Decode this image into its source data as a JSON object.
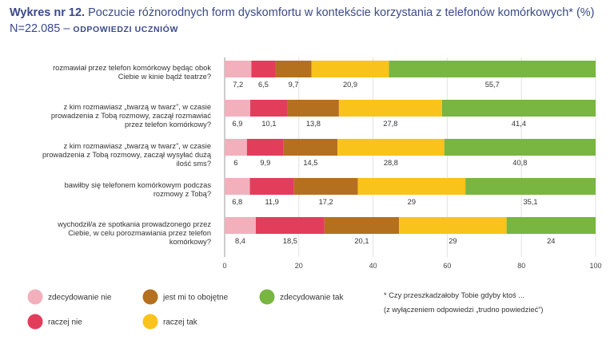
{
  "title": {
    "lead": "Wykres nr 12.",
    "text": "Poczucie różnorodnych form dyskomfortu w kontekście korzystania z telefonów komórkowych* (%) N=22.085 –",
    "tag": "ODPOWIEDZI UCZNIÓW"
  },
  "chart_data": {
    "type": "bar",
    "orientation": "horizontal",
    "stacked": true,
    "categories": [
      [
        "rozmawiał przez telefon komórkowy będąc obok",
        "Ciebie w kinie bądź teatrze?"
      ],
      [
        "z kim rozmawiasz „twarzą w twarz”, w czasie",
        "prowadzenia z Tobą rozmowy, zaczął rozmawiać",
        "przez telefon komórkowy?"
      ],
      [
        "z kim rozmawiasz „twarzą w twarz”, w czasie",
        "prowadzenia z Tobą rozmowy, zaczął wysyłać dużą",
        "ilość sms?"
      ],
      [
        "bawiłby się telefonem komórkowym podczas",
        "rozmowy z Tobą?"
      ],
      [
        "wychodził/a ze spotkania prowadzonego przez",
        "Ciebie, w celu porozmawiania przez telefon",
        "komórkowy?"
      ]
    ],
    "series": [
      {
        "name": "zdecydowanie nie",
        "color": "#f2b0bd",
        "values": [
          7.2,
          6.9,
          6,
          6.8,
          8.4
        ]
      },
      {
        "name": "raczej nie",
        "color": "#e33d5c",
        "values": [
          6.5,
          10.1,
          9.9,
          11.9,
          18.5
        ]
      },
      {
        "name": "jest mi to obojętne",
        "color": "#b5701f",
        "values": [
          9.7,
          13.8,
          14.5,
          17.2,
          20.1
        ]
      },
      {
        "name": "raczej tak",
        "color": "#f9c31b",
        "values": [
          20.9,
          27.8,
          28.8,
          29,
          29
        ]
      },
      {
        "name": "zdecydowanie tak",
        "color": "#79b541",
        "values": [
          55.7,
          41.4,
          40.8,
          35.1,
          24
        ]
      }
    ],
    "value_labels": [
      [
        "7,2",
        "6,5",
        "9,7",
        "20,9",
        "55,7"
      ],
      [
        "6,9",
        "10,1",
        "13,8",
        "27,8",
        "41,4"
      ],
      [
        "6",
        "9,9",
        "14,5",
        "28,8",
        "40,8"
      ],
      [
        "6,8",
        "11,9",
        "17,2",
        "29",
        "35,1"
      ],
      [
        "8,4",
        "18,5",
        "20,1",
        "29",
        "24"
      ]
    ],
    "xlim": [
      0,
      100
    ],
    "xticks": [
      "0",
      "20",
      "40",
      "60",
      "80",
      "100"
    ],
    "legend_position": "bottom"
  },
  "legend_order": [
    0,
    2,
    4,
    1,
    3
  ],
  "note": [
    "* Czy przeszkadzałoby Tobie gdyby ktoś ...",
    "(z wyłączeniem odpowiedzi „trudno powiedzieć”)"
  ]
}
